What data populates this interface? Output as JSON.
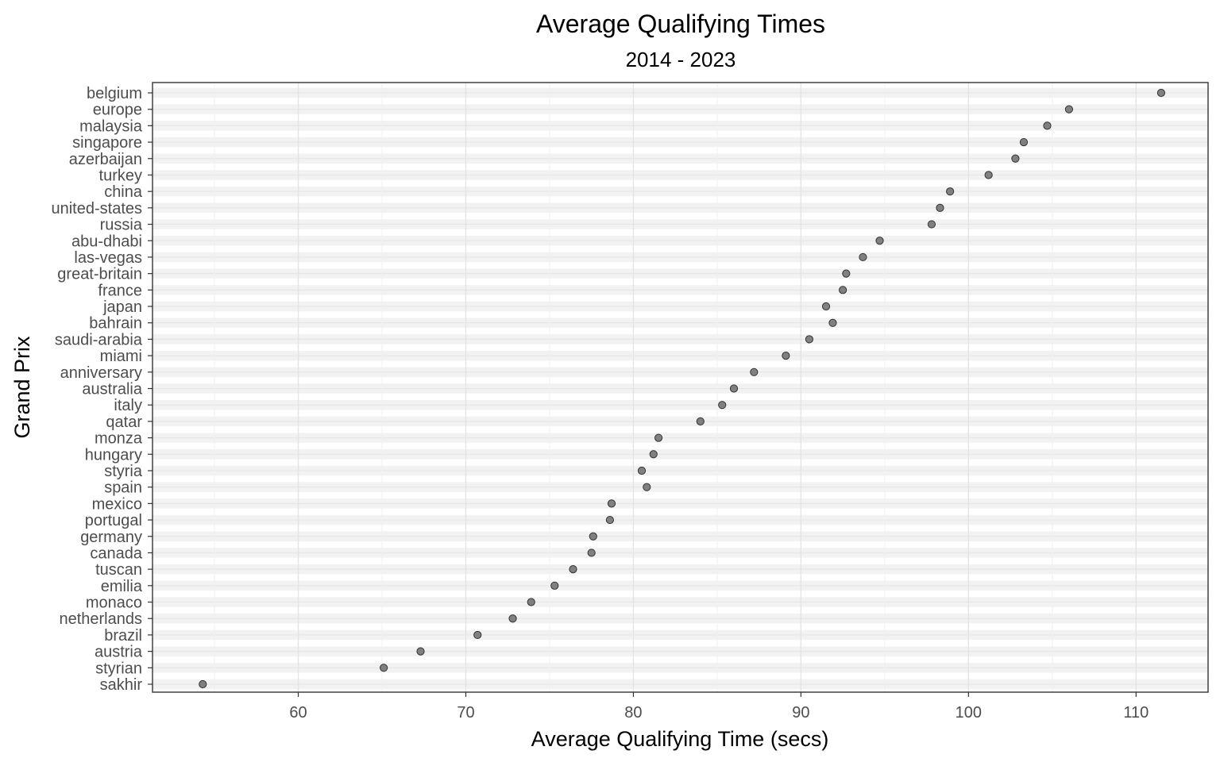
{
  "chart_data": {
    "type": "scatter",
    "title": "Average Qualifying Times",
    "subtitle": "2014 - 2023",
    "xlabel": "Average Qualifying Time (secs)",
    "ylabel": "Grand Prix",
    "xlim": [
      51.3,
      114.3
    ],
    "x_ticks": [
      60,
      70,
      80,
      90,
      100,
      110
    ],
    "grid": true,
    "legend": "none",
    "point_color": "#808080",
    "point_stroke": "#333333",
    "band_color": "#f2f2f2",
    "categories": [
      "belgium",
      "europe",
      "malaysia",
      "singapore",
      "azerbaijan",
      "turkey",
      "china",
      "united-states",
      "russia",
      "abu-dhabi",
      "las-vegas",
      "great-britain",
      "france",
      "japan",
      "bahrain",
      "saudi-arabia",
      "miami",
      "anniversary",
      "australia",
      "italy",
      "qatar",
      "monza",
      "hungary",
      "styria",
      "spain",
      "mexico",
      "portugal",
      "germany",
      "canada",
      "tuscan",
      "emilia",
      "monaco",
      "netherlands",
      "brazil",
      "austria",
      "styrian",
      "sakhir"
    ],
    "values": [
      111.5,
      106.0,
      104.7,
      103.3,
      102.8,
      101.2,
      98.9,
      98.3,
      97.8,
      94.7,
      93.7,
      92.7,
      92.5,
      91.5,
      91.9,
      90.5,
      89.1,
      87.2,
      86.0,
      85.3,
      84.0,
      81.5,
      81.2,
      80.5,
      80.8,
      78.7,
      78.6,
      77.6,
      77.5,
      76.4,
      75.3,
      73.9,
      72.8,
      70.7,
      67.3,
      65.1,
      54.3
    ]
  }
}
